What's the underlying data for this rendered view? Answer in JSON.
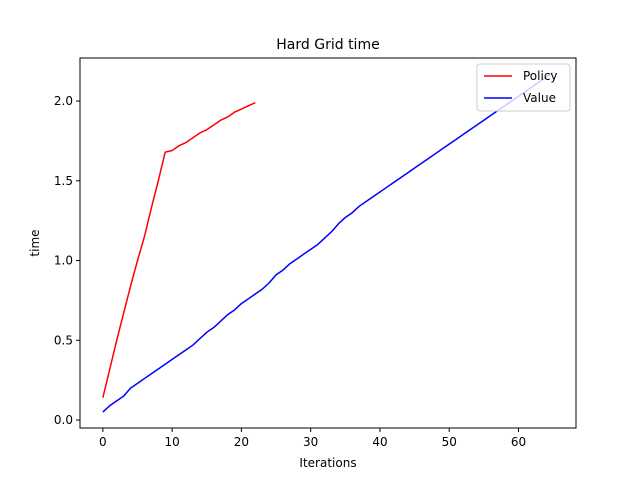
{
  "chart_data": {
    "type": "line",
    "title": "Hard Grid time",
    "xlabel": "Iterations",
    "ylabel": "time",
    "xlim": [
      -3.3,
      68.3
    ],
    "ylim": [
      -0.05,
      2.27
    ],
    "xticks": [
      0,
      10,
      20,
      30,
      40,
      50,
      60
    ],
    "yticks": [
      0.0,
      0.5,
      1.0,
      1.5,
      2.0
    ],
    "xtick_labels": [
      "0",
      "10",
      "20",
      "30",
      "40",
      "50",
      "60"
    ],
    "ytick_labels": [
      "0.0",
      "0.5",
      "1.0",
      "1.5",
      "2.0"
    ],
    "grid": false,
    "legend_position": "top-right",
    "series": [
      {
        "name": "Policy",
        "color": "#ff0000",
        "x": [
          0,
          1,
          2,
          3,
          4,
          5,
          6,
          7,
          8,
          9,
          10,
          11,
          12,
          13,
          14,
          15,
          16,
          17,
          18,
          19,
          20,
          21,
          22
        ],
        "y": [
          0.14,
          0.32,
          0.5,
          0.67,
          0.84,
          1.0,
          1.15,
          1.33,
          1.5,
          1.68,
          1.69,
          1.72,
          1.74,
          1.77,
          1.8,
          1.82,
          1.85,
          1.88,
          1.9,
          1.93,
          1.95,
          1.97,
          1.99
        ]
      },
      {
        "name": "Value",
        "color": "#0000ff",
        "x": [
          0,
          1,
          2,
          3,
          4,
          5,
          6,
          7,
          8,
          9,
          10,
          11,
          12,
          13,
          14,
          15,
          16,
          17,
          18,
          19,
          20,
          21,
          22,
          23,
          24,
          25,
          26,
          27,
          28,
          29,
          30,
          31,
          32,
          33,
          34,
          35,
          36,
          37,
          38,
          39,
          40,
          41,
          42,
          43,
          44,
          45,
          46,
          47,
          48,
          49,
          50,
          51,
          52,
          53,
          54,
          55,
          56,
          57,
          58,
          59,
          60,
          61,
          62,
          63,
          64,
          65
        ],
        "y": [
          0.05,
          0.09,
          0.12,
          0.15,
          0.2,
          0.23,
          0.26,
          0.29,
          0.32,
          0.35,
          0.38,
          0.41,
          0.44,
          0.47,
          0.51,
          0.55,
          0.58,
          0.62,
          0.66,
          0.69,
          0.73,
          0.76,
          0.79,
          0.82,
          0.86,
          0.91,
          0.94,
          0.98,
          1.01,
          1.04,
          1.07,
          1.1,
          1.14,
          1.18,
          1.23,
          1.27,
          1.3,
          1.34,
          1.37,
          1.4,
          1.43,
          1.46,
          1.49,
          1.52,
          1.55,
          1.58,
          1.61,
          1.64,
          1.67,
          1.7,
          1.73,
          1.76,
          1.79,
          1.82,
          1.85,
          1.88,
          1.91,
          1.94,
          1.97,
          2.0,
          2.03,
          2.06,
          2.09,
          2.12,
          2.15,
          2.18
        ]
      }
    ]
  }
}
